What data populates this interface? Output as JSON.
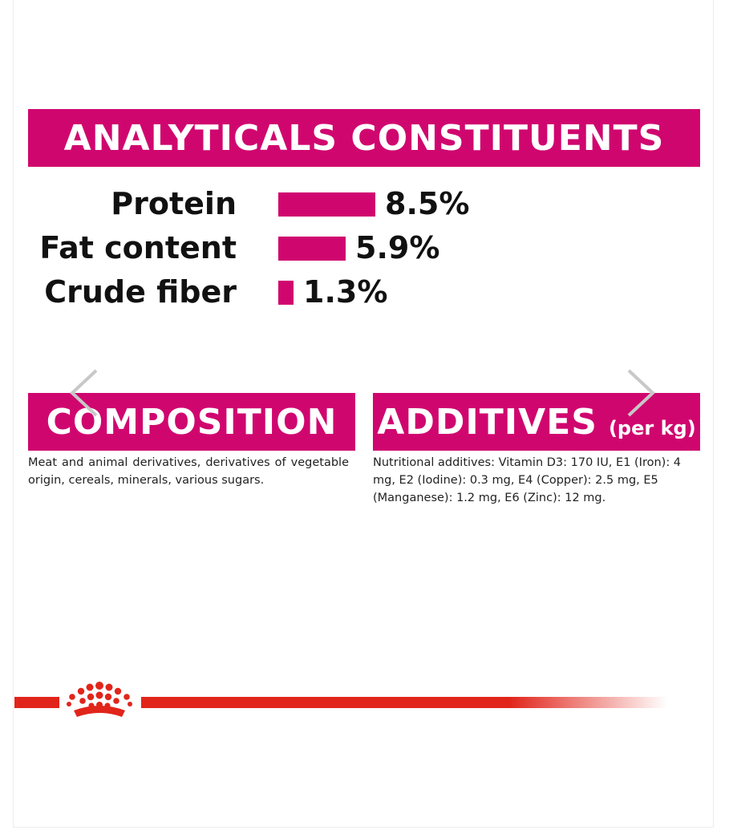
{
  "colors": {
    "accent": "#d0066f",
    "brand": "#e1251b",
    "chevron": "#c8c8c8"
  },
  "analytics": {
    "title": "ANALYTICALS CONSTITUENTS",
    "max_percent": 8.5,
    "rows": [
      {
        "label": "Protein",
        "value": "8.5%",
        "percent": 8.5
      },
      {
        "label": "Fat content",
        "value": "5.9%",
        "percent": 5.9
      },
      {
        "label": "Crude fiber",
        "value": "1.3%",
        "percent": 1.3
      }
    ]
  },
  "composition": {
    "title": "COMPOSITION",
    "text": "Meat and animal derivatives, derivatives of vegetable origin, cereals, minerals, various sugars."
  },
  "additives": {
    "title": "ADDITIVES",
    "title_suffix": "(per kg)",
    "text": "Nutritional additives: Vitamin D3: 170 IU, E1 (Iron): 4 mg, E2 (Iodine): 0.3 mg, E4 (Copper): 2.5 mg, E5 (Manganese): 1.2 mg, E6 (Zinc): 12 mg."
  },
  "carousel": {
    "prev_icon": "chevron-left-icon",
    "next_icon": "chevron-right-icon"
  },
  "logo": {
    "icon": "royal-canin-crown-logo"
  }
}
